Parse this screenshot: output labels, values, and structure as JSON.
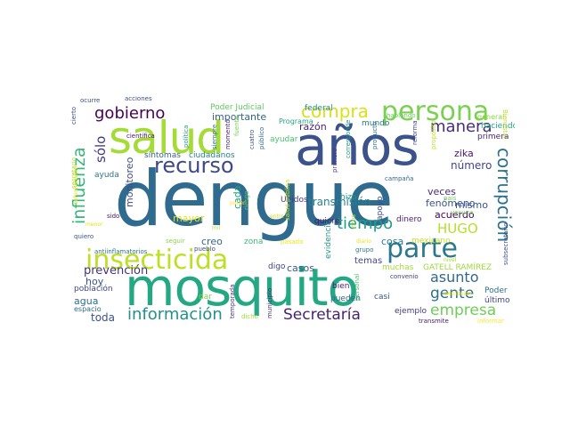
{
  "words": [
    {
      "text": "dengue",
      "color": "#2f6b8e"
    },
    {
      "text": "mosquito",
      "color": "#24a884"
    },
    {
      "text": "años",
      "color": "#3b528b"
    },
    {
      "text": "salud",
      "color": "#a5db36"
    },
    {
      "text": "insecticida",
      "color": "#bddf26"
    },
    {
      "text": "persona",
      "color": "#7ad151"
    },
    {
      "text": "parte",
      "color": "#2a788e"
    },
    {
      "text": "recurso",
      "color": "#3e4989"
    },
    {
      "text": "gobierno",
      "color": "#440154"
    },
    {
      "text": "corrupción",
      "color": "#2c728e"
    },
    {
      "text": "información",
      "color": "#21918c"
    },
    {
      "text": "Secretaría",
      "color": "#482173"
    },
    {
      "text": "empresa",
      "color": "#6ece58"
    },
    {
      "text": "compra",
      "color": "#d8e219"
    },
    {
      "text": "tiempo",
      "color": "#1f9e89"
    },
    {
      "text": "manera",
      "color": "#472d7b"
    },
    {
      "text": "gente",
      "color": "#2d708e"
    },
    {
      "text": "influenza",
      "color": "#35b779"
    },
    {
      "text": "asunto",
      "color": "#31688e"
    },
    {
      "text": "HUGO",
      "color": "#b5de2b"
    },
    {
      "text": "prevención",
      "color": "#46337e"
    },
    {
      "text": "sólo",
      "color": "#453781"
    },
    {
      "text": "fenómeno",
      "color": "#3b528b"
    },
    {
      "text": "número",
      "color": "#404688"
    },
    {
      "text": "importante",
      "color": "#33638d"
    },
    {
      "text": "transmisión",
      "color": "#26828e"
    },
    {
      "text": "zika",
      "color": "#481467"
    },
    {
      "text": "veces",
      "color": "#472c7a"
    },
    {
      "text": "mismo",
      "color": "#3a548c"
    },
    {
      "text": "acuerdo",
      "color": "#440256"
    },
    {
      "text": "razón",
      "color": "#481f70"
    },
    {
      "text": "cosa",
      "color": "#287c8e"
    },
    {
      "text": "monitoreo",
      "color": "#3e4a89"
    },
    {
      "text": "toda",
      "color": "#3b518b"
    },
    {
      "text": "casos",
      "color": "#365c8d"
    },
    {
      "text": "mayor",
      "color": "#e2e418"
    },
    {
      "text": "cada",
      "color": "#20a386"
    },
    {
      "text": "creo",
      "color": "#31688e"
    },
    {
      "text": "hoy",
      "color": "#39568c"
    },
    {
      "text": "agua",
      "color": "#2e6e8e"
    },
    {
      "text": "temas",
      "color": "#3f4788"
    },
    {
      "text": "Poder Judicial",
      "color": "#5ec962"
    },
    {
      "text": "GATELL RAMÍREZ",
      "color": "#9fda3a"
    },
    {
      "text": "ayuda",
      "color": "#2a768e"
    },
    {
      "text": "Unidos",
      "color": "#453882"
    },
    {
      "text": "población",
      "color": "#3f4788"
    },
    {
      "text": "ejemplo",
      "color": "#443983"
    },
    {
      "text": "dinero",
      "color": "#482374"
    },
    {
      "text": "evidencia",
      "color": "#1f988b"
    },
    {
      "text": "apoyo",
      "color": "#3e4c8a"
    },
    {
      "text": "hizo",
      "color": "#1f968b"
    },
    {
      "text": "quiere",
      "color": "#481b6d"
    },
    {
      "text": "ayudar",
      "color": "#4ac16d"
    },
    {
      "text": "síntomas",
      "color": "#34618d"
    },
    {
      "text": "ciudadanos",
      "color": "#25848e"
    },
    {
      "text": "digo",
      "color": "#414487"
    },
    {
      "text": "muchas",
      "color": "#a8db34"
    },
    {
      "text": "mexicano",
      "color": "#c8e020"
    },
    {
      "text": "zona",
      "color": "#3aba76"
    },
    {
      "text": "pueden",
      "color": "#32648e"
    },
    {
      "text": "casi",
      "color": "#3b528b"
    },
    {
      "text": "último",
      "color": "#3f4889"
    },
    {
      "text": "Poder",
      "color": "#2e6f8e"
    },
    {
      "text": "espacio",
      "color": "#2f6c8e"
    },
    {
      "text": "toda",
      "color": "#404588"
    },
    {
      "text": "dar",
      "color": "#7fd34e"
    },
    {
      "text": "bien",
      "color": "#481c6e"
    },
    {
      "text": "temporada",
      "color": "#46337f"
    },
    {
      "text": "municipio",
      "color": "#472f7d"
    },
    {
      "text": "mundo",
      "color": "#2a778e"
    },
    {
      "text": "federal",
      "color": "#228b8d"
    },
    {
      "text": "Programa",
      "color": "#22a884"
    },
    {
      "text": "haciendo",
      "color": "#21a685"
    },
    {
      "text": "primera",
      "color": "#482576"
    },
    {
      "text": "general",
      "color": "#8bd646"
    },
    {
      "text": "subsecretario",
      "color": "#3d4e8a"
    },
    {
      "text": "transmite",
      "color": "#481769"
    },
    {
      "text": "informar",
      "color": "#fde725"
    },
    {
      "text": "antiinflamatorios",
      "color": "#2d718e"
    },
    {
      "text": "seguir",
      "color": "#85d54a"
    },
    {
      "text": "pueblo",
      "color": "#3d4d8a"
    },
    {
      "text": "pasado",
      "color": "#f1e51d"
    },
    {
      "text": "sido",
      "color": "#470e61"
    },
    {
      "text": "quiero",
      "color": "#3b528b"
    },
    {
      "text": "científica",
      "color": "#481567"
    },
    {
      "text": "acciones",
      "color": "#3e4a89"
    },
    {
      "text": "siempre",
      "color": "#2b758e"
    },
    {
      "text": "momento",
      "color": "#482576"
    },
    {
      "text": "cuatro",
      "color": "#3a548c"
    },
    {
      "text": "público",
      "color": "#32658e"
    },
    {
      "text": "salud pública",
      "color": "#d2e21b"
    },
    {
      "text": "política",
      "color": "#1f9f88"
    },
    {
      "text": "fuente",
      "color": "#7ad151"
    },
    {
      "text": "primero",
      "color": "#433e85"
    },
    {
      "text": "producto",
      "color": "#2b758e"
    },
    {
      "text": "hablando",
      "color": "#6ccd5a"
    },
    {
      "text": "reforma",
      "color": "#3f4788"
    },
    {
      "text": "propósito",
      "color": "#c2df23"
    },
    {
      "text": "cierto",
      "color": "#3e4989"
    },
    {
      "text": "ocurre",
      "color": "#3c508b"
    },
    {
      "text": "secretario",
      "color": "#b2dd2d"
    },
    {
      "text": "convenio",
      "color": "#414287"
    },
    {
      "text": "campaña",
      "color": "#31688e"
    },
    {
      "text": "grupo",
      "color": "#2a788e"
    },
    {
      "text": "personal",
      "color": "#4ac16d"
    },
    {
      "text": "corresponde",
      "color": "#1f9a8a"
    },
    {
      "text": "dicho",
      "color": "#a0da39"
    },
    {
      "text": "Bienestar",
      "color": "#c0df25"
    },
    {
      "text": "país",
      "color": "#73d056"
    },
    {
      "text": "virus",
      "color": "#b8de29"
    },
    {
      "text": "riesgo",
      "color": "#5ac864"
    },
    {
      "text": "vacuna",
      "color": "#70cf57"
    },
    {
      "text": "menor",
      "color": "#e5e419"
    },
    {
      "text": "distribuida",
      "color": "#f4e61e"
    },
    {
      "text": "diario",
      "color": "#e7e419"
    },
    {
      "text": "mil",
      "color": "#bddf26"
    },
    {
      "text": "entre",
      "color": "#d0e11c"
    },
    {
      "text": "enfermedades",
      "color": "#e2e418"
    },
    {
      "text": "poner",
      "color": "#fde725"
    },
    {
      "text": "nivel",
      "color": "#aadc32"
    }
  ]
}
